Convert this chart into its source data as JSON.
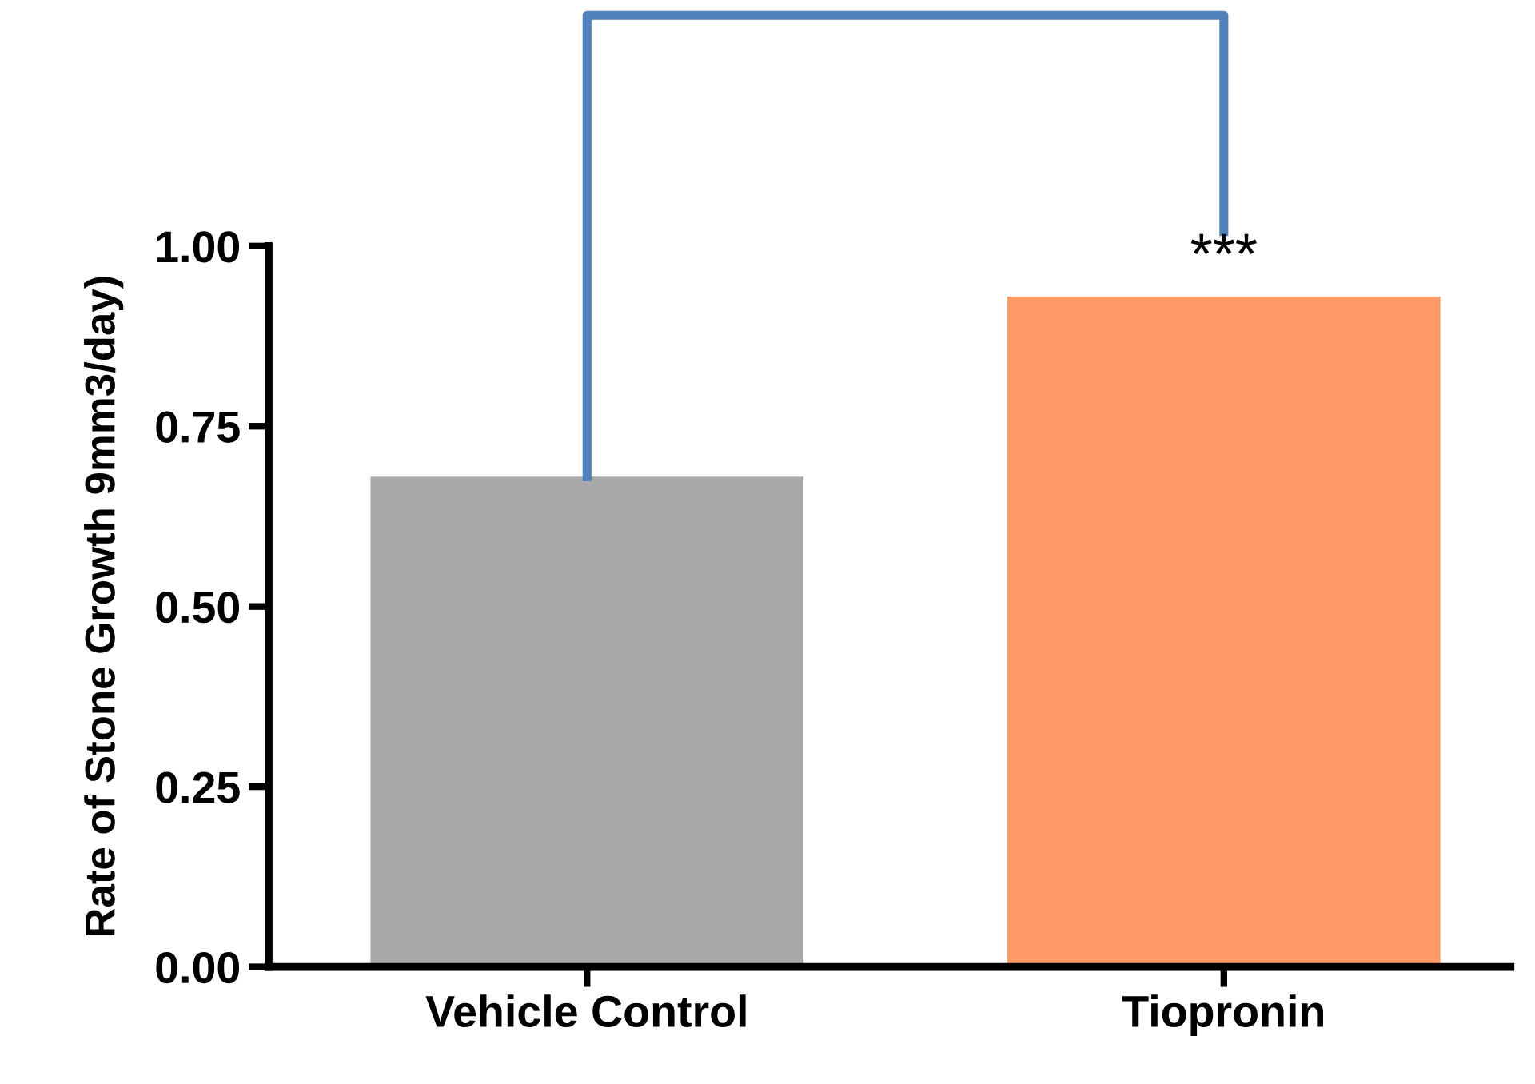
{
  "chart_data": {
    "type": "bar",
    "ylabel": "Rate of Stone Growth 9mm3/day)",
    "categories": [
      "Vehicle Control",
      "Tiopronin"
    ],
    "values": [
      0.68,
      0.93
    ],
    "colors": [
      "#a9a9a9",
      "#ff9966"
    ],
    "ylim": [
      0,
      1.0
    ],
    "yticks": [
      {
        "value": 0,
        "label": "0.00"
      },
      {
        "value": 0.25,
        "label": "0.25"
      },
      {
        "value": 0.5,
        "label": "0.50"
      },
      {
        "value": 0.75,
        "label": "0.75"
      },
      {
        "value": 1.0,
        "label": "1.00"
      }
    ],
    "annotations": [
      "***"
    ],
    "grid": false,
    "legend": false
  }
}
